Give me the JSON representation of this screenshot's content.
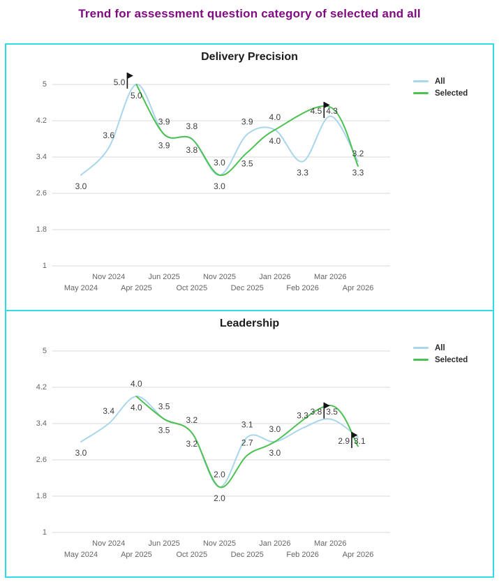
{
  "page_title": {
    "text": "Trend for assessment question category of selected and all",
    "color": "#800b80"
  },
  "legend": {
    "items": [
      {
        "label": "All",
        "color": "#a9d6ec"
      },
      {
        "label": "Selected",
        "color": "#4cc152"
      }
    ]
  },
  "colors": {
    "panel_border": "#2fdde6",
    "grid": "#d9d9d9",
    "axis_text": "#646464",
    "data_label": "#3d3d3d",
    "all_line": "#a9d6ec",
    "selected_line": "#4cc152",
    "flag": "#141414",
    "chart_title": "#1a1a1a"
  },
  "axis": {
    "y_ticks": [
      "5",
      "4.2",
      "3.4",
      "2.6",
      "1.8",
      "1"
    ],
    "y_min": 1,
    "y_max": 5
  },
  "chart_data": [
    {
      "type": "line",
      "title": "Delivery Precision",
      "categories": [
        "May 2024",
        "Nov 2024",
        "Apr 2025",
        "Jun 2025",
        "Oct 2025",
        "Nov 2025",
        "Dec 2025",
        "Jan 2026",
        "Feb 2026",
        "Mar 2026",
        "Apr 2026"
      ],
      "ylim": [
        1,
        5
      ],
      "legend_position": "right",
      "grid": true,
      "series": [
        {
          "name": "All",
          "values": [
            3.0,
            3.6,
            5.0,
            3.9,
            3.8,
            3.0,
            3.9,
            4.0,
            3.3,
            4.3,
            3.3
          ],
          "label_pos": [
            "below",
            "above",
            "left",
            "above",
            "above",
            "above",
            "above",
            "above",
            "below",
            "right",
            "below"
          ]
        },
        {
          "name": "Selected",
          "values": [
            null,
            null,
            5.0,
            3.9,
            3.8,
            3.0,
            3.5,
            4.0,
            null,
            4.5,
            3.2
          ],
          "label_pos": [
            null,
            null,
            "below",
            "below",
            "below",
            "below",
            "below",
            "below",
            null,
            "left",
            "above"
          ]
        }
      ],
      "flags": [
        {
          "index": 2,
          "style": "single"
        },
        {
          "index": 9,
          "style": "dual"
        }
      ]
    },
    {
      "type": "line",
      "title": "Leadership",
      "categories": [
        "May 2024",
        "Nov 2024",
        "Apr 2025",
        "Jun 2025",
        "Oct 2025",
        "Nov 2025",
        "Dec 2025",
        "Jan 2026",
        "Feb 2026",
        "Mar 2026",
        "Apr 2026"
      ],
      "ylim": [
        1,
        5
      ],
      "legend_position": "right",
      "grid": true,
      "series": [
        {
          "name": "All",
          "values": [
            3.0,
            3.4,
            4.0,
            3.5,
            3.2,
            2.0,
            3.1,
            3.0,
            3.3,
            3.5,
            3.1
          ],
          "label_pos": [
            "below",
            "above",
            "above",
            "above",
            "above",
            "above",
            "above",
            "above",
            "above",
            "right",
            "right"
          ]
        },
        {
          "name": "Selected",
          "values": [
            null,
            null,
            4.0,
            3.5,
            3.2,
            2.0,
            2.7,
            3.0,
            null,
            3.8,
            2.9
          ],
          "label_pos": [
            null,
            null,
            "below",
            "below",
            "below",
            "below",
            "above",
            "below",
            null,
            "left",
            "left"
          ]
        }
      ],
      "flags": [
        {
          "index": 9,
          "style": "dual"
        },
        {
          "index": 10,
          "style": "dual"
        }
      ]
    }
  ]
}
